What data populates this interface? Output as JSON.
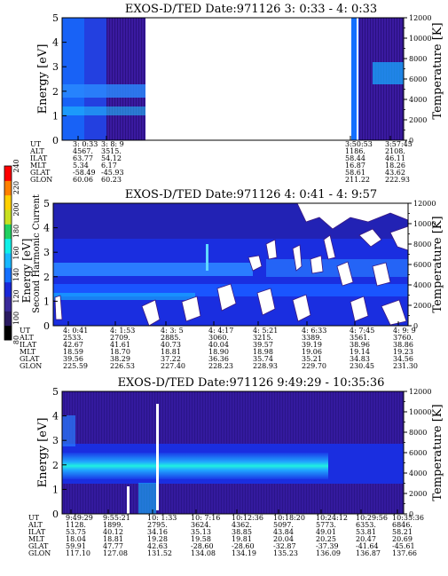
{
  "colorbar": {
    "label": "Second Harmonic Current",
    "ticks": [
      "80",
      "100",
      "120",
      "140",
      "160",
      "180",
      "200",
      "220",
      "240"
    ],
    "colors": [
      "#000000",
      "#2a1a60",
      "#3a2a9a",
      "#1a28d8",
      "#1470ff",
      "#18b8ff",
      "#10f0e8",
      "#20d060",
      "#c8e020",
      "#ffd000",
      "#ff8000",
      "#ff0000"
    ]
  },
  "chart_data": [
    {
      "type": "heatmap",
      "title": "EXOS-D/TED   Date:971126  3: 0:33 - 4: 0:33",
      "ylabel": "Energy [eV]",
      "y2label": "Temperature [K]",
      "ylim": [
        0,
        5
      ],
      "y2lim": [
        0,
        12000
      ],
      "yticks": [
        "0",
        "1",
        "2",
        "3",
        "4",
        "5"
      ],
      "y2ticks": [
        "0",
        "2000",
        "4000",
        "6000",
        "8000",
        "10000",
        "12000"
      ],
      "orbit_table": {
        "row_labels": [
          "UT",
          "ALT",
          "ILAT",
          "MLT",
          "GLAT",
          "GLON"
        ],
        "columns": [
          {
            "values": [
              "3: 0:33",
              "4567.",
              "63.77",
              "5.34",
              "-58.49",
              "60.06"
            ]
          },
          {
            "values": [
              "3: 8: 9",
              "3515.",
              "54.12",
              "6.17",
              "-45.93",
              "60.23"
            ]
          },
          {
            "values": [
              "3:50:53",
              "1186.",
              "58.44",
              "16.87",
              "58.61",
              "211.22"
            ]
          },
          {
            "values": [
              "3:57:45",
              "2108.",
              "46.11",
              "18.26",
              "43.62",
              "222.93"
            ]
          }
        ]
      }
    },
    {
      "type": "heatmap",
      "title": "EXOS-D/TED   Date:971126  4: 0:41 - 4: 9:57",
      "ylabel": "Energy [eV]",
      "y2label": "Temperature [K]",
      "ylim": [
        0,
        5
      ],
      "y2lim": [
        0,
        12000
      ],
      "yticks": [
        "0",
        "1",
        "2",
        "3",
        "4",
        "5"
      ],
      "y2ticks": [
        "0",
        "2000",
        "4000",
        "6000",
        "8000",
        "10000",
        "12000"
      ],
      "orbit_table": {
        "row_labels": [
          "UT",
          "ALT",
          "ILAT",
          "MLT",
          "GLAT",
          "GLON"
        ],
        "columns": [
          {
            "values": [
              "4: 0:41",
              "2533.",
              "42.67",
              "18.59",
              "39.56",
              "225.59"
            ]
          },
          {
            "values": [
              "4: 1:53",
              "2709.",
              "41.61",
              "18.70",
              "38.29",
              "226.53"
            ]
          },
          {
            "values": [
              "4: 3: 5",
              "2885.",
              "40.73",
              "18.81",
              "37.22",
              "227.40"
            ]
          },
          {
            "values": [
              "4: 4:17",
              "3060.",
              "40.04",
              "18.90",
              "36.36",
              "228.23"
            ]
          },
          {
            "values": [
              "4: 5:21",
              "3215.",
              "39.57",
              "18.98",
              "35.74",
              "228.93"
            ]
          },
          {
            "values": [
              "4: 6:33",
              "3389.",
              "39.19",
              "19.06",
              "35.21",
              "229.70"
            ]
          },
          {
            "values": [
              "4: 7:45",
              "3561.",
              "38.96",
              "19.14",
              "34.83",
              "230.45"
            ]
          },
          {
            "values": [
              "4: 9: 9",
              "3760.",
              "38.86",
              "19.23",
              "34.56",
              "231.30"
            ]
          }
        ]
      }
    },
    {
      "type": "heatmap",
      "title": "EXOS-D/TED   Date:971126  9:49:29 - 10:35:36",
      "ylabel": "Energy [eV]",
      "y2label": "Temperature [K]",
      "ylim": [
        0,
        5
      ],
      "y2lim": [
        0,
        12000
      ],
      "yticks": [
        "0",
        "1",
        "2",
        "3",
        "4",
        "5"
      ],
      "y2ticks": [
        "0",
        "2000",
        "4000",
        "6000",
        "8000",
        "10000",
        "12000"
      ],
      "orbit_table": {
        "row_labels": [
          "UT",
          "ALT",
          "ILAT",
          "MLT",
          "GLAT",
          "GLON"
        ],
        "columns": [
          {
            "values": [
              "9:49:29",
              "1128.",
              "53.75",
              "18.04",
              "59.91",
              "117.10"
            ]
          },
          {
            "values": [
              "9:55:21",
              "1899.",
              "40.12",
              "18.81",
              "47.77",
              "127.08"
            ]
          },
          {
            "values": [
              "10: 1:33",
              "2795.",
              "34.16",
              "19.28",
              "42.63",
              "131.52"
            ]
          },
          {
            "values": [
              "10: 7:16",
              "3624.",
              "35.13",
              "19.58",
              "-28.60",
              "134.08"
            ]
          },
          {
            "values": [
              "10:12:36",
              "4362.",
              "38.85",
              "19.81",
              "-28.60",
              "134.19"
            ]
          },
          {
            "values": [
              "10:18:20",
              "5097.",
              "43.84",
              "20.04",
              "-32.87",
              "135.23"
            ]
          },
          {
            "values": [
              "10:24:12",
              "5773.",
              "49.01",
              "20.25",
              "-37.39",
              "136.09"
            ]
          },
          {
            "values": [
              "10:29:56",
              "6353.",
              "53.81",
              "20.47",
              "-41.64",
              "136.87"
            ]
          },
          {
            "values": [
              "10:35:36",
              "6846.",
              "58.21",
              "20.69",
              "-45.61",
              "137.66"
            ]
          }
        ]
      }
    }
  ]
}
